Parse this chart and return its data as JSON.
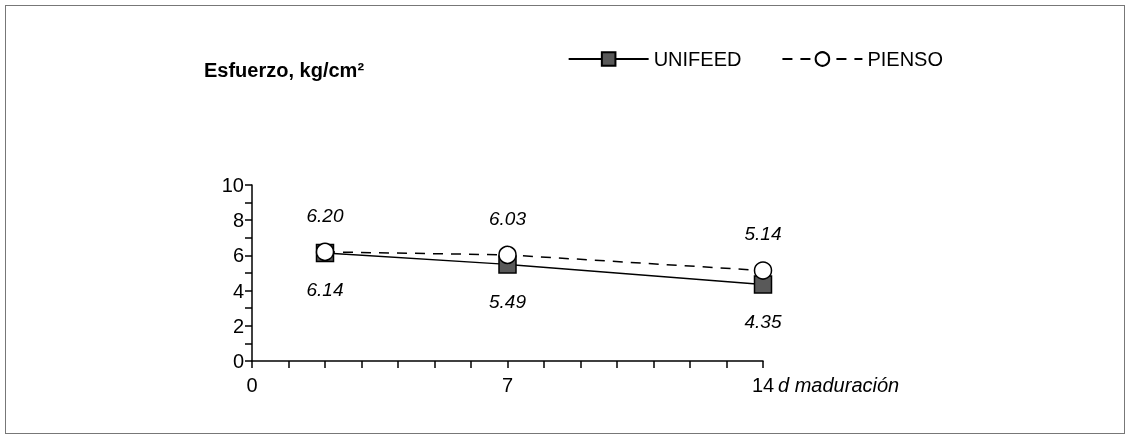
{
  "chart_data": {
    "type": "line",
    "ylabel": "Esfuerzo, kg/cm²",
    "xlabel": "d maduración",
    "x": [
      2,
      7,
      14
    ],
    "series": [
      {
        "name": "UNIFEED",
        "color": "#595959",
        "marker": "square",
        "line_style": "solid",
        "values": [
          6.14,
          5.49,
          4.35
        ],
        "value_labels": [
          "6.14",
          "5.49",
          "4.35"
        ]
      },
      {
        "name": "PIENSO",
        "color": "#ffffff",
        "marker": "circle",
        "line_style": "dashed",
        "values": [
          6.2,
          6.03,
          5.14
        ],
        "value_labels": [
          "6.20",
          "6.03",
          "5.14"
        ]
      }
    ],
    "xlim": [
      0,
      14
    ],
    "xticks": [
      0,
      {
        "value": 1,
        "label": null
      },
      {
        "value": 2,
        "label": null
      },
      {
        "value": 3,
        "label": null
      },
      {
        "value": 4,
        "label": null
      },
      {
        "value": 5,
        "label": null
      },
      {
        "value": 6,
        "label": null
      },
      7,
      {
        "value": 8,
        "label": null
      },
      {
        "value": 9,
        "label": null
      },
      {
        "value": 10,
        "label": null
      },
      {
        "value": 11,
        "label": null
      },
      {
        "value": 12,
        "label": null
      },
      {
        "value": 13,
        "label": null
      },
      14
    ],
    "ylim": [
      0,
      10
    ],
    "yticks": [
      0,
      {
        "value": 1,
        "label": null
      },
      2,
      {
        "value": 3,
        "label": null
      },
      4,
      {
        "value": 5,
        "label": null
      },
      6,
      {
        "value": 7,
        "label": null
      },
      8,
      {
        "value": 9,
        "label": null
      },
      10
    ],
    "grid": false,
    "legend": "top right"
  }
}
